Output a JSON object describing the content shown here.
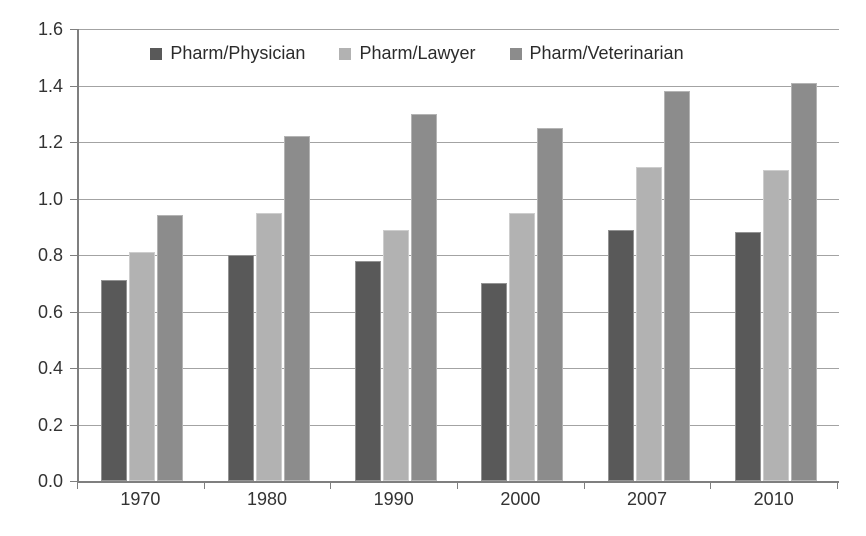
{
  "chart_data": {
    "type": "bar",
    "title": "",
    "xlabel": "",
    "ylabel": "",
    "categories": [
      "1970",
      "1980",
      "1990",
      "2000",
      "2007",
      "2010"
    ],
    "series": [
      {
        "name": "Pharm/Physician",
        "color": "#595959",
        "values": [
          0.71,
          0.8,
          0.78,
          0.7,
          0.89,
          0.88
        ]
      },
      {
        "name": "Pharm/Lawyer",
        "color": "#b2b2b2",
        "values": [
          0.81,
          0.95,
          0.89,
          0.95,
          1.11,
          1.1
        ]
      },
      {
        "name": "Pharm/Veterinarian",
        "color": "#8c8c8c",
        "values": [
          0.94,
          1.22,
          1.3,
          1.25,
          1.38,
          1.41
        ]
      }
    ],
    "ylim": [
      0,
      1.6
    ],
    "ytick_step": 0.2,
    "ytick_labels": [
      "0.0",
      "0.2",
      "0.4",
      "0.6",
      "0.8",
      "1.0",
      "1.2",
      "1.4",
      "1.6"
    ],
    "grid": true,
    "legend_position": "top-center"
  },
  "colors": {
    "background": "#ffffff",
    "gridline": "#a3a3a3",
    "axis": "#7f7f7f",
    "text": "#333333"
  }
}
